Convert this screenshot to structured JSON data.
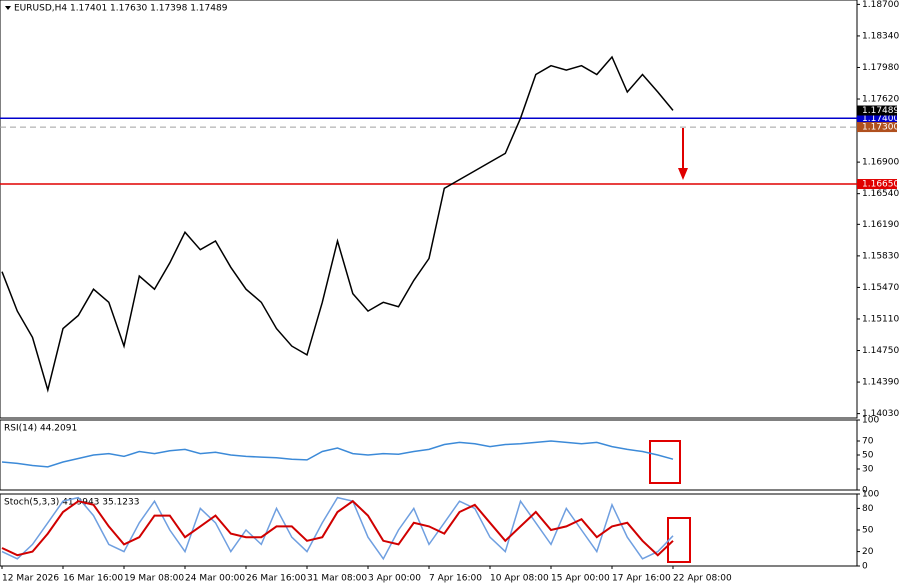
{
  "chart_data": [
    {
      "type": "line",
      "title": "EURUSD,H4  1.17401 1.17630 1.17398 1.17489",
      "ylim": [
        1.1398,
        1.1875
      ],
      "yticks": [
        {
          "value": 1.187,
          "label": "1.18700"
        },
        {
          "value": 1.1834,
          "label": "1.18340"
        },
        {
          "value": 1.1798,
          "label": "1.17980"
        },
        {
          "value": 1.1762,
          "label": "1.17620"
        },
        {
          "value": 1.169,
          "label": "1.16900"
        },
        {
          "value": 1.1654,
          "label": "1.16540"
        },
        {
          "value": 1.1619,
          "label": "1.16190"
        },
        {
          "value": 1.1583,
          "label": "1.15830"
        },
        {
          "value": 1.1547,
          "label": "1.15470"
        },
        {
          "value": 1.1511,
          "label": "1.15110"
        },
        {
          "value": 1.1475,
          "label": "1.14750"
        },
        {
          "value": 1.1439,
          "label": "1.14390"
        },
        {
          "value": 1.1403,
          "label": "1.14030"
        }
      ],
      "series": [
        {
          "color": "#000000",
          "values": [
            1.1565,
            1.152,
            1.149,
            1.143,
            1.15,
            1.1515,
            1.1545,
            1.153,
            1.148,
            1.156,
            1.1545,
            1.1575,
            1.161,
            1.159,
            1.16,
            1.157,
            1.1545,
            1.153,
            1.15,
            1.148,
            1.147,
            1.153,
            1.16,
            1.154,
            1.152,
            1.153,
            1.1525,
            1.1555,
            1.158,
            1.166,
            1.167,
            1.168,
            1.169,
            1.17,
            1.174,
            1.179,
            1.18,
            1.1795,
            1.18,
            1.179,
            1.181,
            1.177,
            1.179,
            1.177,
            1.1749
          ]
        }
      ],
      "hlines": [
        {
          "value": 1.174,
          "label": "1.17400",
          "color": "#0000cc",
          "tag_color": "#0000cc",
          "style": "solid"
        },
        {
          "value": 1.173,
          "label": "1.17300",
          "color": "#a0a0a0",
          "tag_color": "#b0501e",
          "style": "dashed"
        },
        {
          "value": 1.1665,
          "label": "1.16650",
          "color": "#e00000",
          "tag_color": "#e00000",
          "style": "solid"
        }
      ],
      "last_price": {
        "value": 1.17489,
        "label": "1.17489"
      }
    },
    {
      "type": "line",
      "title": "RSI(14) 44.2091",
      "ylim": [
        0,
        100
      ],
      "yticks": [
        0,
        30,
        50,
        70,
        100
      ],
      "series": [
        {
          "color": "#3c8ad8",
          "values": [
            40,
            38,
            35,
            33,
            40,
            45,
            50,
            52,
            48,
            55,
            52,
            56,
            58,
            52,
            54,
            50,
            48,
            47,
            46,
            44,
            43,
            55,
            60,
            52,
            50,
            52,
            51,
            55,
            58,
            65,
            68,
            66,
            62,
            65,
            66,
            68,
            70,
            68,
            66,
            68,
            62,
            58,
            55,
            50,
            44
          ]
        }
      ]
    },
    {
      "type": "line",
      "title": "Stoch(5,3,3) 41.9943 35.1233",
      "ylim": [
        0,
        100
      ],
      "yticks": [
        0,
        20,
        50,
        80,
        100
      ],
      "categories": [
        "12 Mar 2026",
        null,
        null,
        null,
        "16 Mar 16:00",
        null,
        null,
        null,
        "19 Mar 08:00",
        null,
        null,
        null,
        "24 Mar 00:00",
        null,
        null,
        null,
        "26 Mar 16:00",
        null,
        null,
        null,
        "31 Mar 08:00",
        null,
        null,
        null,
        "3 Apr 00:00",
        null,
        null,
        null,
        "7 Apr 16:00",
        null,
        null,
        null,
        "10 Apr 08:00",
        null,
        null,
        null,
        "15 Apr 00:00",
        null,
        null,
        null,
        "17 Apr 16:00",
        null,
        null,
        null,
        "22 Apr 08:00"
      ],
      "series": [
        {
          "color": "#6f9fe0",
          "values": [
            20,
            10,
            30,
            60,
            90,
            95,
            70,
            30,
            20,
            60,
            90,
            50,
            20,
            80,
            60,
            20,
            50,
            30,
            80,
            40,
            20,
            60,
            95,
            90,
            40,
            10,
            50,
            80,
            30,
            60,
            90,
            80,
            40,
            20,
            90,
            60,
            30,
            80,
            50,
            20,
            85,
            40,
            10,
            20,
            42
          ]
        },
        {
          "color": "#d00000",
          "values": [
            25,
            15,
            20,
            45,
            75,
            90,
            85,
            55,
            30,
            40,
            70,
            70,
            40,
            55,
            70,
            45,
            40,
            40,
            55,
            55,
            35,
            40,
            75,
            90,
            70,
            35,
            30,
            60,
            55,
            45,
            75,
            85,
            60,
            35,
            55,
            75,
            50,
            55,
            65,
            40,
            55,
            60,
            35,
            15,
            35
          ]
        }
      ]
    }
  ]
}
